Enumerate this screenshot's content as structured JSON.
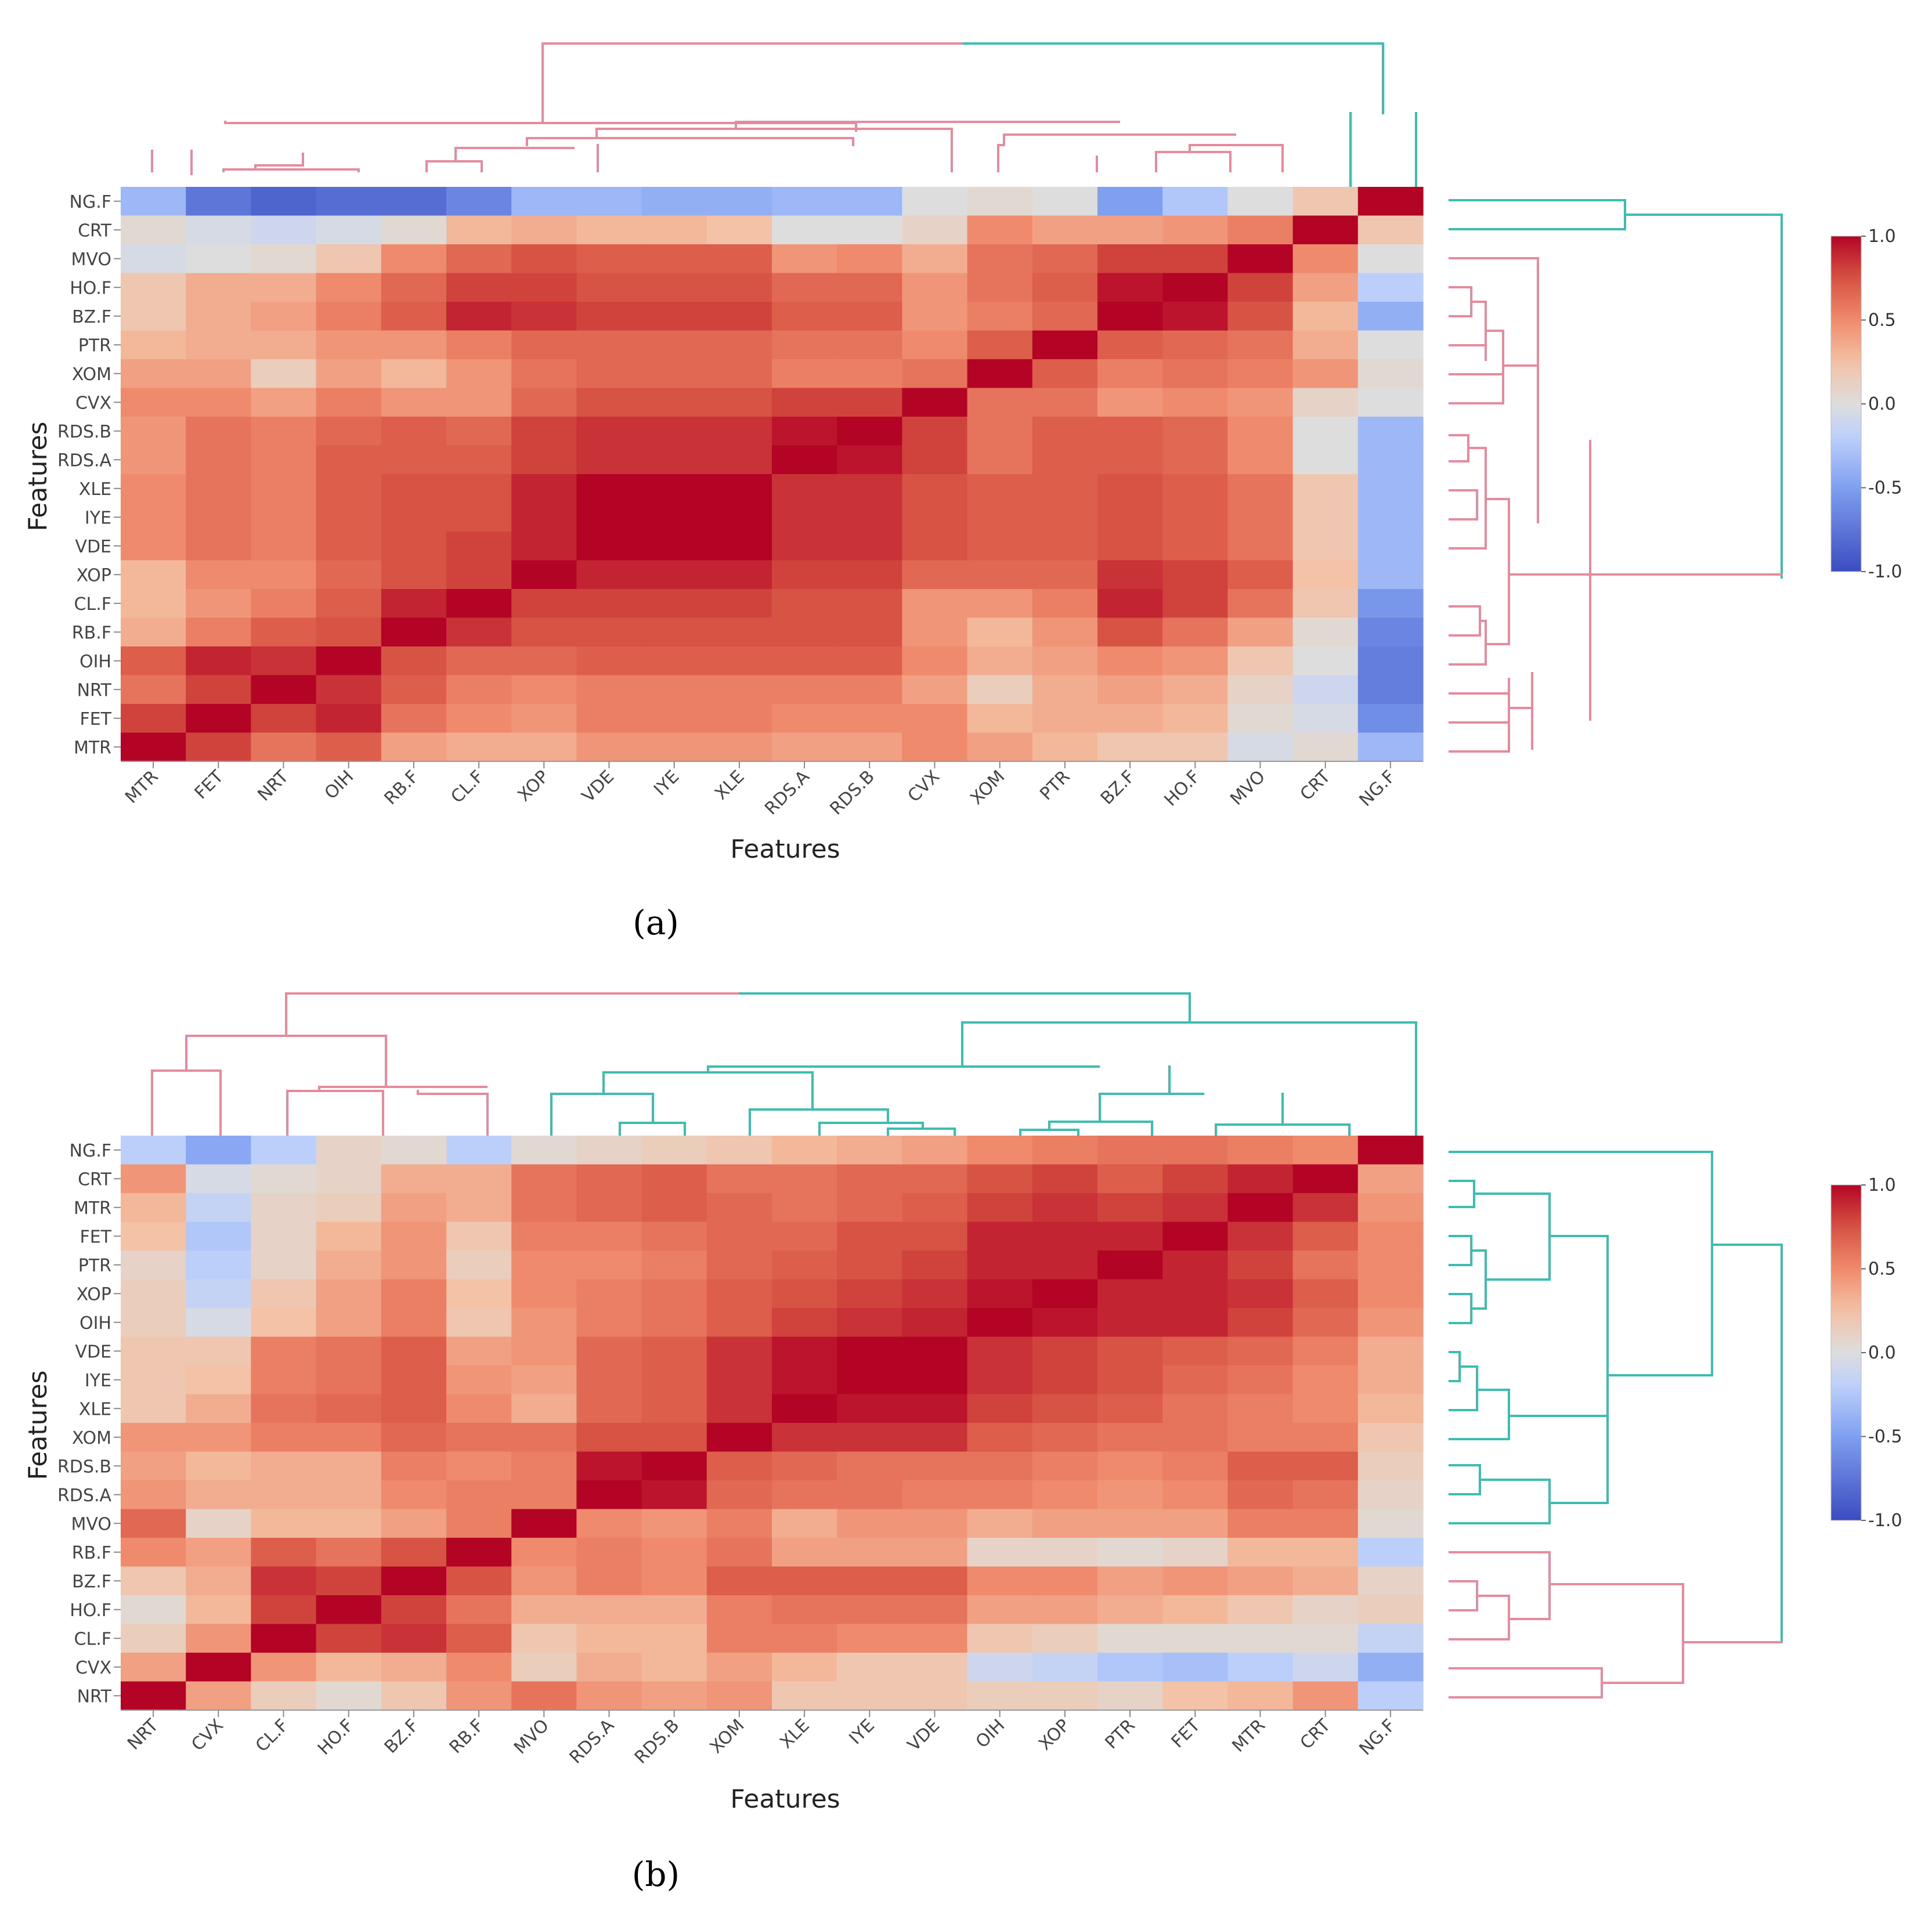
{
  "figure": {
    "panels": [
      {
        "caption": "(a)"
      },
      {
        "caption": "(b)"
      }
    ]
  },
  "colors": {
    "low": "#3b4cc0",
    "mid": "#dddddd",
    "high": "#b40426",
    "dendro_pink": "#e68a9e",
    "dendro_teal": "#3dbdb0"
  },
  "chart_data": [
    {
      "type": "heatmap",
      "title": "",
      "panel_caption": "(a)",
      "xlabel": "Features",
      "ylabel": "Features",
      "colorbar": {
        "ticks": [
          "1.0",
          "0.5",
          "0.0",
          "-0.5",
          "-1.0"
        ],
        "range": [
          -1,
          1
        ],
        "colorscale": "coolwarm"
      },
      "x_categories": [
        "MTR",
        "FET",
        "NRT",
        "OIH",
        "RB.F",
        "CL.F",
        "XOP",
        "VDE",
        "IYE",
        "XLE",
        "RDS.A",
        "RDS.B",
        "CVX",
        "XOM",
        "PTR",
        "BZ.F",
        "HO.F",
        "MVO",
        "CRT",
        "NG.F"
      ],
      "y_categories_top_to_bottom": [
        "NG.F",
        "CRT",
        "MVO",
        "HO.F",
        "BZ.F",
        "PTR",
        "XOM",
        "CVX",
        "RDS.B",
        "RDS.A",
        "XLE",
        "IYE",
        "VDE",
        "XOP",
        "CL.F",
        "RB.F",
        "OIH",
        "NRT",
        "FET",
        "MTR"
      ],
      "values": [
        [
          -0.35,
          -0.75,
          -0.85,
          -0.8,
          -0.8,
          -0.65,
          -0.35,
          -0.35,
          -0.4,
          -0.4,
          -0.35,
          -0.35,
          0.0,
          0.05,
          0.0,
          -0.5,
          -0.25,
          0.0,
          0.2,
          1.0
        ],
        [
          0.05,
          -0.05,
          -0.1,
          -0.05,
          0.05,
          0.3,
          0.35,
          0.3,
          0.3,
          0.25,
          0.0,
          0.0,
          0.1,
          0.5,
          0.4,
          0.4,
          0.45,
          0.55,
          1.0,
          0.2
        ],
        [
          -0.05,
          0.0,
          0.05,
          0.2,
          0.5,
          0.65,
          0.75,
          0.7,
          0.7,
          0.7,
          0.45,
          0.5,
          0.35,
          0.6,
          0.65,
          0.8,
          0.8,
          1.0,
          0.5,
          0.0
        ],
        [
          0.2,
          0.35,
          0.35,
          0.5,
          0.65,
          0.8,
          0.8,
          0.75,
          0.75,
          0.75,
          0.65,
          0.65,
          0.45,
          0.6,
          0.7,
          0.95,
          1.0,
          0.8,
          0.4,
          -0.2
        ],
        [
          0.2,
          0.35,
          0.4,
          0.55,
          0.7,
          0.9,
          0.85,
          0.8,
          0.8,
          0.8,
          0.7,
          0.7,
          0.45,
          0.55,
          0.65,
          1.0,
          0.95,
          0.75,
          0.3,
          -0.4
        ],
        [
          0.3,
          0.35,
          0.35,
          0.45,
          0.45,
          0.55,
          0.65,
          0.65,
          0.65,
          0.65,
          0.6,
          0.6,
          0.5,
          0.7,
          1.0,
          0.7,
          0.65,
          0.6,
          0.35,
          0.0
        ],
        [
          0.4,
          0.4,
          0.15,
          0.4,
          0.3,
          0.45,
          0.6,
          0.65,
          0.65,
          0.65,
          0.55,
          0.55,
          0.6,
          1.0,
          0.7,
          0.55,
          0.6,
          0.55,
          0.45,
          0.05
        ],
        [
          0.5,
          0.5,
          0.4,
          0.55,
          0.45,
          0.45,
          0.65,
          0.75,
          0.75,
          0.75,
          0.8,
          0.8,
          1.0,
          0.6,
          0.6,
          0.45,
          0.5,
          0.45,
          0.1,
          0.0
        ],
        [
          0.45,
          0.6,
          0.55,
          0.65,
          0.7,
          0.65,
          0.8,
          0.85,
          0.85,
          0.85,
          0.95,
          1.0,
          0.8,
          0.6,
          0.7,
          0.7,
          0.65,
          0.5,
          0.0,
          -0.35
        ],
        [
          0.45,
          0.6,
          0.55,
          0.7,
          0.7,
          0.7,
          0.8,
          0.85,
          0.85,
          0.85,
          1.0,
          0.95,
          0.8,
          0.6,
          0.7,
          0.7,
          0.65,
          0.5,
          0.0,
          -0.35
        ],
        [
          0.5,
          0.6,
          0.55,
          0.7,
          0.75,
          0.75,
          0.9,
          1.0,
          1.0,
          1.0,
          0.85,
          0.85,
          0.75,
          0.7,
          0.7,
          0.75,
          0.7,
          0.6,
          0.2,
          -0.35
        ],
        [
          0.5,
          0.6,
          0.55,
          0.7,
          0.75,
          0.75,
          0.9,
          1.0,
          1.0,
          1.0,
          0.85,
          0.85,
          0.75,
          0.7,
          0.7,
          0.75,
          0.7,
          0.6,
          0.2,
          -0.35
        ],
        [
          0.5,
          0.6,
          0.55,
          0.7,
          0.75,
          0.8,
          0.9,
          1.0,
          1.0,
          1.0,
          0.85,
          0.85,
          0.75,
          0.7,
          0.7,
          0.75,
          0.7,
          0.6,
          0.2,
          -0.35
        ],
        [
          0.3,
          0.5,
          0.5,
          0.65,
          0.75,
          0.8,
          1.0,
          0.9,
          0.9,
          0.9,
          0.8,
          0.8,
          0.65,
          0.65,
          0.65,
          0.85,
          0.8,
          0.7,
          0.25,
          -0.35
        ],
        [
          0.3,
          0.45,
          0.55,
          0.7,
          0.9,
          1.0,
          0.8,
          0.8,
          0.8,
          0.8,
          0.75,
          0.75,
          0.45,
          0.45,
          0.55,
          0.9,
          0.8,
          0.6,
          0.2,
          -0.55
        ],
        [
          0.35,
          0.55,
          0.7,
          0.75,
          1.0,
          0.85,
          0.75,
          0.75,
          0.75,
          0.75,
          0.75,
          0.75,
          0.45,
          0.3,
          0.45,
          0.75,
          0.6,
          0.4,
          0.05,
          -0.65
        ],
        [
          0.7,
          0.9,
          0.85,
          1.0,
          0.75,
          0.65,
          0.65,
          0.7,
          0.7,
          0.7,
          0.7,
          0.7,
          0.5,
          0.35,
          0.4,
          0.5,
          0.45,
          0.2,
          0.0,
          -0.7
        ],
        [
          0.6,
          0.8,
          1.0,
          0.85,
          0.7,
          0.55,
          0.5,
          0.55,
          0.55,
          0.55,
          0.55,
          0.55,
          0.4,
          0.15,
          0.35,
          0.4,
          0.35,
          0.1,
          -0.1,
          -0.7
        ],
        [
          0.8,
          1.0,
          0.8,
          0.9,
          0.6,
          0.5,
          0.45,
          0.55,
          0.55,
          0.55,
          0.5,
          0.5,
          0.5,
          0.3,
          0.35,
          0.35,
          0.3,
          0.05,
          -0.05,
          -0.6
        ],
        [
          1.0,
          0.8,
          0.6,
          0.7,
          0.4,
          0.35,
          0.35,
          0.45,
          0.45,
          0.45,
          0.4,
          0.4,
          0.5,
          0.4,
          0.3,
          0.2,
          0.2,
          -0.05,
          0.05,
          -0.35
        ]
      ]
    },
    {
      "type": "heatmap",
      "title": "",
      "panel_caption": "(b)",
      "xlabel": "Features",
      "ylabel": "Features",
      "colorbar": {
        "ticks": [
          "1.0",
          "0.5",
          "0.0",
          "-0.5",
          "-1.0"
        ],
        "range": [
          -1,
          1
        ],
        "colorscale": "coolwarm"
      },
      "x_categories": [
        "NRT",
        "CVX",
        "CL.F",
        "HO.F",
        "BZ.F",
        "RB.F",
        "MVO",
        "RDS.A",
        "RDS.B",
        "XOM",
        "XLE",
        "IYE",
        "VDE",
        "OIH",
        "XOP",
        "PTR",
        "FET",
        "MTR",
        "CRT",
        "NG.F"
      ],
      "y_categories_top_to_bottom": [
        "NG.F",
        "CRT",
        "MTR",
        "FET",
        "PTR",
        "XOP",
        "OIH",
        "VDE",
        "IYE",
        "XLE",
        "XOM",
        "RDS.B",
        "RDS.A",
        "MVO",
        "RB.F",
        "BZ.F",
        "HO.F",
        "CL.F",
        "CVX",
        "NRT"
      ],
      "values": [
        [
          -0.2,
          -0.45,
          -0.2,
          0.1,
          0.05,
          -0.2,
          0.05,
          0.1,
          0.15,
          0.2,
          0.3,
          0.35,
          0.4,
          0.5,
          0.55,
          0.6,
          0.6,
          0.55,
          0.5,
          1.0
        ],
        [
          0.45,
          -0.05,
          0.05,
          0.1,
          0.35,
          0.35,
          0.6,
          0.65,
          0.7,
          0.6,
          0.6,
          0.65,
          0.65,
          0.75,
          0.8,
          0.7,
          0.8,
          0.9,
          1.0,
          0.4
        ],
        [
          0.3,
          -0.15,
          0.1,
          0.15,
          0.4,
          0.35,
          0.6,
          0.65,
          0.7,
          0.65,
          0.6,
          0.65,
          0.7,
          0.8,
          0.85,
          0.8,
          0.85,
          1.0,
          0.85,
          0.45
        ],
        [
          0.25,
          -0.25,
          0.1,
          0.3,
          0.45,
          0.2,
          0.55,
          0.55,
          0.6,
          0.65,
          0.65,
          0.75,
          0.75,
          0.9,
          0.9,
          0.9,
          1.0,
          0.85,
          0.7,
          0.5
        ],
        [
          0.1,
          -0.2,
          0.1,
          0.35,
          0.45,
          0.15,
          0.5,
          0.5,
          0.55,
          0.65,
          0.7,
          0.75,
          0.8,
          0.9,
          0.9,
          1.0,
          0.9,
          0.8,
          0.6,
          0.5
        ],
        [
          0.15,
          -0.15,
          0.2,
          0.4,
          0.55,
          0.25,
          0.5,
          0.55,
          0.6,
          0.7,
          0.75,
          0.8,
          0.85,
          0.95,
          1.0,
          0.9,
          0.9,
          0.85,
          0.7,
          0.5
        ],
        [
          0.15,
          -0.05,
          0.25,
          0.4,
          0.55,
          0.2,
          0.45,
          0.55,
          0.6,
          0.7,
          0.8,
          0.85,
          0.9,
          1.0,
          0.95,
          0.9,
          0.9,
          0.8,
          0.65,
          0.45
        ],
        [
          0.2,
          0.2,
          0.55,
          0.6,
          0.7,
          0.4,
          0.45,
          0.65,
          0.7,
          0.85,
          0.95,
          1.0,
          1.0,
          0.85,
          0.8,
          0.75,
          0.7,
          0.65,
          0.55,
          0.35
        ],
        [
          0.2,
          0.25,
          0.55,
          0.6,
          0.7,
          0.45,
          0.4,
          0.65,
          0.7,
          0.85,
          0.95,
          1.0,
          1.0,
          0.85,
          0.8,
          0.75,
          0.65,
          0.6,
          0.5,
          0.35
        ],
        [
          0.2,
          0.35,
          0.6,
          0.65,
          0.7,
          0.5,
          0.35,
          0.65,
          0.7,
          0.85,
          1.0,
          0.95,
          0.95,
          0.8,
          0.75,
          0.7,
          0.6,
          0.55,
          0.5,
          0.3
        ],
        [
          0.45,
          0.45,
          0.55,
          0.55,
          0.65,
          0.6,
          0.6,
          0.75,
          0.75,
          1.0,
          0.85,
          0.85,
          0.85,
          0.7,
          0.65,
          0.6,
          0.6,
          0.55,
          0.55,
          0.2
        ],
        [
          0.4,
          0.3,
          0.35,
          0.35,
          0.55,
          0.5,
          0.55,
          0.95,
          1.0,
          0.7,
          0.65,
          0.6,
          0.6,
          0.6,
          0.55,
          0.5,
          0.55,
          0.7,
          0.7,
          0.15
        ],
        [
          0.45,
          0.35,
          0.35,
          0.35,
          0.5,
          0.55,
          0.55,
          1.0,
          0.95,
          0.65,
          0.6,
          0.6,
          0.55,
          0.55,
          0.5,
          0.45,
          0.5,
          0.65,
          0.6,
          0.1
        ],
        [
          0.65,
          0.1,
          0.3,
          0.3,
          0.4,
          0.55,
          1.0,
          0.5,
          0.45,
          0.55,
          0.35,
          0.45,
          0.45,
          0.35,
          0.4,
          0.4,
          0.4,
          0.55,
          0.55,
          0.05
        ],
        [
          0.5,
          0.4,
          0.7,
          0.6,
          0.75,
          1.0,
          0.5,
          0.55,
          0.5,
          0.6,
          0.4,
          0.4,
          0.4,
          0.1,
          0.1,
          0.05,
          0.1,
          0.3,
          0.3,
          -0.2
        ],
        [
          0.2,
          0.35,
          0.85,
          0.8,
          1.0,
          0.75,
          0.45,
          0.55,
          0.5,
          0.7,
          0.7,
          0.7,
          0.7,
          0.5,
          0.5,
          0.4,
          0.45,
          0.4,
          0.35,
          0.1
        ],
        [
          0.05,
          0.3,
          0.8,
          1.0,
          0.8,
          0.6,
          0.35,
          0.35,
          0.35,
          0.55,
          0.6,
          0.6,
          0.6,
          0.4,
          0.4,
          0.35,
          0.3,
          0.2,
          0.1,
          0.15
        ],
        [
          0.15,
          0.45,
          1.0,
          0.8,
          0.85,
          0.7,
          0.2,
          0.3,
          0.3,
          0.55,
          0.55,
          0.5,
          0.5,
          0.2,
          0.15,
          0.05,
          0.05,
          0.05,
          0.05,
          -0.15
        ],
        [
          0.4,
          1.0,
          0.45,
          0.3,
          0.35,
          0.5,
          0.15,
          0.35,
          0.3,
          0.4,
          0.3,
          0.2,
          0.2,
          -0.1,
          -0.15,
          -0.25,
          -0.3,
          -0.2,
          -0.1,
          -0.4
        ],
        [
          1.0,
          0.4,
          0.15,
          0.05,
          0.2,
          0.45,
          0.6,
          0.45,
          0.4,
          0.45,
          0.2,
          0.2,
          0.2,
          0.15,
          0.15,
          0.1,
          0.25,
          0.3,
          0.45,
          -0.2
        ]
      ]
    }
  ]
}
